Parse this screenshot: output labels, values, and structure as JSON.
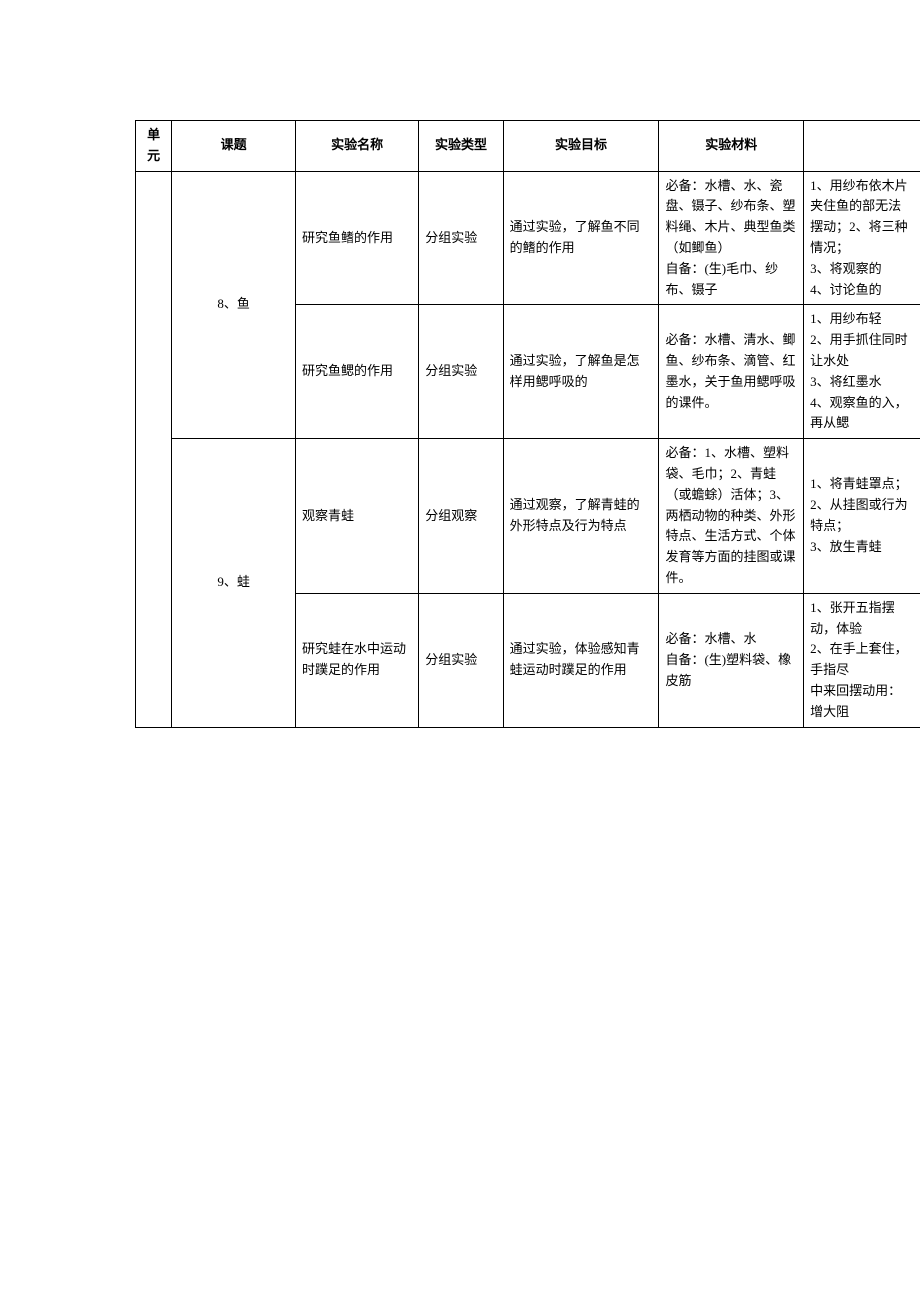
{
  "table": {
    "headers": {
      "unit": "单元",
      "topic": "课题",
      "name": "实验名称",
      "type": "实验类型",
      "goal": "实验目标",
      "material": "实验材料",
      "extra": ""
    },
    "rows": [
      {
        "unit": "",
        "topic": "8、鱼",
        "name": "研究鱼鳍的作用",
        "type": "分组实验",
        "goal": "通过实验，了解鱼不同的鳍的作用",
        "material": "必备：水槽、水、瓷盘、镊子、纱布条、塑料绳、木片、典型鱼类（如鲫鱼）\n自备：(生)毛巾、纱布、镊子",
        "extra": "1、用纱布依木片夹住鱼的部无法摆动；2、将三种情况；\n3、将观察的\n4、讨论鱼的"
      },
      {
        "unit": "",
        "topic": "",
        "name": "研究鱼鳃的作用",
        "type": "分组实验",
        "goal": "通过实验，了解鱼是怎样用鳃呼吸的",
        "material": "必备：水槽、清水、鲫鱼、纱布条、滴管、红墨水，关于鱼用鳃呼吸的课件。",
        "extra": "1、用纱布轻\n2、用手抓住同时让水处\n3、将红墨水\n4、观察鱼的入，再从鳃"
      },
      {
        "unit": "",
        "topic": "9、蛙",
        "name": "观察青蛙",
        "type": "分组观察",
        "goal": "通过观察，了解青蛙的外形特点及行为特点",
        "material": "必备：1、水槽、塑料袋、毛巾；2、青蛙（或蟾蜍）活体；3、两栖动物的种类、外形特点、生活方式、个体发育等方面的挂图或课件。",
        "extra": "1、将青蛙罩点；\n2、从挂图或行为特点；\n3、放生青蛙"
      },
      {
        "unit": "",
        "topic": "",
        "name": "研究蛙在水中运动时蹼足的作用",
        "type": "分组实验",
        "goal": "通过实验，体验感知青蛙运动时蹼足的作用",
        "material": "必备：水槽、水\n自备：(生)塑料袋、橡皮筋",
        "extra": "1、张开五指摆动，体验\n2、在手上套住，手指尽\n中来回摆动用：增大阻"
      }
    ]
  }
}
